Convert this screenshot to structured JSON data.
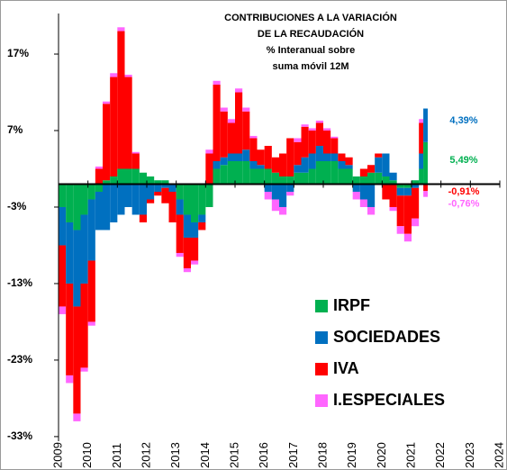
{
  "chart_data": {
    "type": "bar",
    "title_lines": [
      "CONTRIBUCIONES A LA VARIACIÓN",
      "DE LA RECAUDACIÓN",
      "% Interanual sobre",
      "suma móvil 12M"
    ],
    "x": [
      2009.0,
      2009.25,
      2009.5,
      2009.75,
      2010.0,
      2010.25,
      2010.5,
      2010.75,
      2011.0,
      2011.25,
      2011.5,
      2011.75,
      2012.0,
      2012.25,
      2012.5,
      2012.75,
      2013.0,
      2013.25,
      2013.5,
      2013.75,
      2014.0,
      2014.25,
      2014.5,
      2014.75,
      2015.0,
      2015.25,
      2015.5,
      2015.75,
      2016.0,
      2016.25,
      2016.5,
      2016.75,
      2017.0,
      2017.25,
      2017.5,
      2017.75,
      2018.0,
      2018.25,
      2018.5,
      2018.75,
      2019.0,
      2019.25,
      2019.5,
      2019.75,
      2020.0,
      2020.25,
      2020.5,
      2020.75,
      2021.0,
      2021.25,
      2021.4
    ],
    "series": [
      {
        "name": "IRPF",
        "color": "#00b050",
        "values": [
          -3,
          -5,
          -6,
          -4,
          -2,
          -1,
          0.5,
          1,
          2,
          2,
          2,
          1.5,
          1,
          0.5,
          0.5,
          0,
          -2,
          -4,
          -5,
          -4,
          -3,
          2,
          2.5,
          3,
          3,
          3,
          2,
          2,
          2,
          1.5,
          1,
          1,
          1.5,
          1.5,
          2,
          3,
          3,
          3,
          2,
          2,
          1,
          1,
          1.5,
          1.5,
          1,
          0.5,
          -0.5,
          -0.5,
          0.5,
          2,
          5.49
        ]
      },
      {
        "name": "SOCIEDADES",
        "color": "#0070c0",
        "values": [
          -5,
          -8,
          -10,
          -9,
          -8,
          -5,
          -6,
          -5,
          -4,
          -3,
          -4,
          -4,
          -2,
          -1,
          -0.5,
          -1,
          -2,
          -3,
          -2,
          -1,
          0,
          1,
          1,
          1,
          1,
          1.5,
          1,
          0.5,
          -1,
          -2,
          -3,
          -1,
          1,
          2,
          2,
          2,
          1,
          1,
          1,
          0.5,
          -1,
          -2,
          -3,
          2,
          3,
          1,
          -1,
          -1,
          -0.5,
          2,
          4.39
        ]
      },
      {
        "name": "IVA",
        "color": "#ff0000",
        "values": [
          -8,
          -12,
          -14,
          -11,
          -8,
          2,
          10,
          13,
          18,
          12,
          2,
          -1,
          -0.5,
          -0.5,
          -2,
          -4,
          -5,
          -4,
          -3,
          -1,
          4,
          10,
          6,
          4,
          8,
          5,
          3,
          2,
          3,
          2,
          3,
          5,
          3,
          4,
          3,
          3,
          3,
          2,
          1,
          1,
          0,
          1,
          1,
          0.5,
          -2,
          -3,
          -4,
          -5,
          -4,
          4,
          -0.91
        ]
      },
      {
        "name": "I.ESPECIALES",
        "color": "#ff66ff",
        "values": [
          -1,
          -1,
          -1,
          -0.5,
          -0.5,
          0.3,
          0.3,
          0.5,
          0.5,
          0.3,
          0.2,
          0,
          0,
          0,
          0,
          0,
          -0.5,
          -0.5,
          -0.5,
          0,
          0.5,
          0.5,
          0.5,
          0.5,
          0.5,
          0.5,
          0.3,
          0,
          -1,
          -1.5,
          -1,
          -0.5,
          0.5,
          0.3,
          0.3,
          0.3,
          0.3,
          0.2,
          0,
          0,
          -1,
          -1,
          -1,
          0,
          0,
          -0.5,
          -1,
          -1,
          -1,
          0.5,
          -0.76
        ]
      }
    ],
    "annotations": [
      {
        "text": "4,39%",
        "y": 8.3,
        "color": "#0070c0"
      },
      {
        "text": "5,49%",
        "y": 3.1,
        "color": "#00b050"
      },
      {
        "text": "-0,91%",
        "y": -1.0,
        "color": "#ff0000"
      },
      {
        "text": "-0,76%",
        "y": -2.6,
        "color": "#ff66ff"
      }
    ],
    "xlim": [
      2009,
      2024
    ],
    "xticks": [
      2009,
      2010,
      2011,
      2012,
      2013,
      2014,
      2015,
      2016,
      2017,
      2018,
      2019,
      2020,
      2021,
      2022,
      2023,
      2024
    ],
    "ylim": [
      -33.6,
      22.3
    ],
    "yticks": [
      {
        "value": -33,
        "label": "-33%"
      },
      {
        "value": -23,
        "label": "-23%"
      },
      {
        "value": -13,
        "label": "-13%"
      },
      {
        "value": -3,
        "label": "-3%"
      },
      {
        "value": 7,
        "label": "7%"
      },
      {
        "value": 17,
        "label": "17%"
      }
    ],
    "stacked": true
  }
}
